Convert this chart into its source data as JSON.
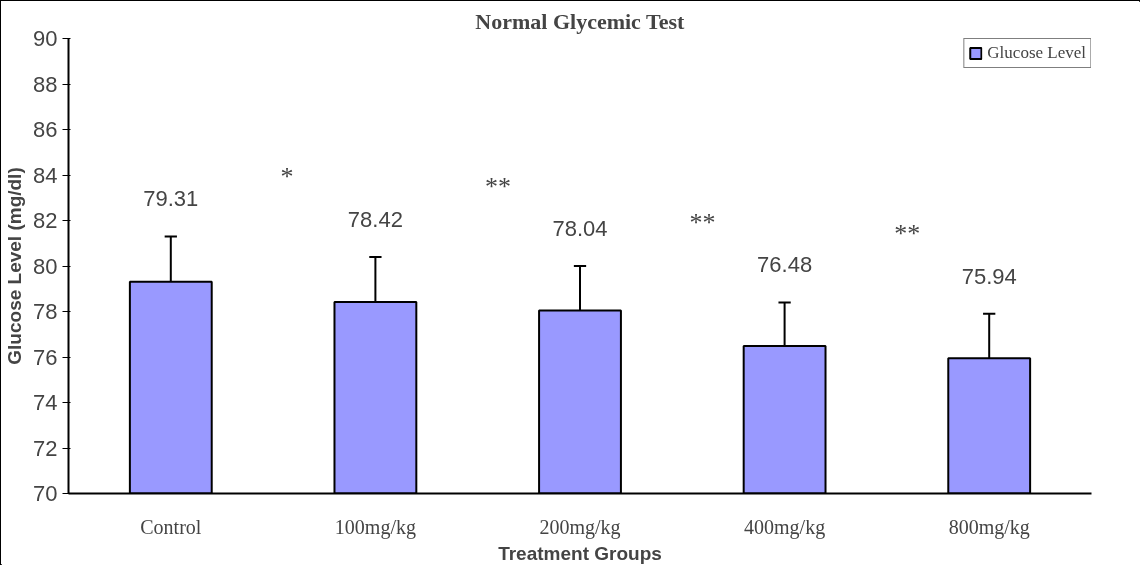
{
  "chart_data": {
    "type": "bar",
    "title": "Normal Glycemic Test",
    "xlabel": "Treatment Groups",
    "ylabel": "Glucose Level (mg/dl)",
    "categories": [
      "Control",
      "100mg/kg",
      "200mg/kg",
      "400mg/kg",
      "800mg/kg"
    ],
    "series": [
      {
        "name": "Glucose Level",
        "color": "#9999ff",
        "values": [
          79.31,
          78.42,
          78.04,
          76.48,
          75.94
        ],
        "errors": [
          [
            79.31,
            81.3
          ],
          [
            78.42,
            80.4
          ],
          [
            78.04,
            80.0
          ],
          [
            76.48,
            78.4
          ],
          [
            75.94,
            77.9
          ]
        ]
      }
    ],
    "data_labels": true,
    "ylim": [
      70,
      90
    ],
    "yticks": [
      70,
      72,
      74,
      76,
      78,
      80,
      82,
      84,
      86,
      88,
      90
    ],
    "grid": false,
    "legend": "top right",
    "annotations": [
      "*",
      "**",
      "**",
      "**"
    ]
  }
}
